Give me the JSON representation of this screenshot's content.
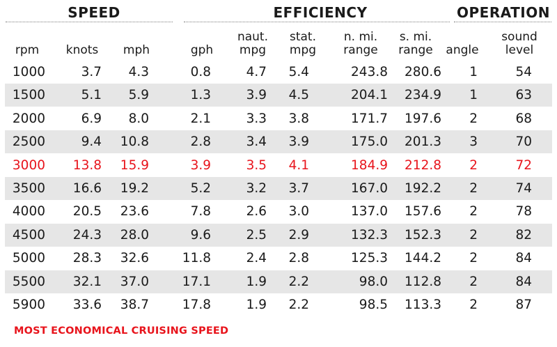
{
  "groups": {
    "speed": "SPEED",
    "efficiency": "EFFICIENCY",
    "operation": "OPERATION"
  },
  "columns": [
    {
      "key": "rpm",
      "lines": [
        "rpm"
      ]
    },
    {
      "key": "knots",
      "lines": [
        "knots"
      ]
    },
    {
      "key": "mph",
      "lines": [
        "mph"
      ]
    },
    {
      "key": "gph",
      "lines": [
        "gph"
      ]
    },
    {
      "key": "naut_mpg",
      "lines": [
        "naut.",
        "mpg"
      ]
    },
    {
      "key": "stat_mpg",
      "lines": [
        "stat.",
        "mpg"
      ]
    },
    {
      "key": "nmi_range",
      "lines": [
        "n. mi.",
        "range"
      ]
    },
    {
      "key": "smi_range",
      "lines": [
        "s. mi.",
        "range"
      ]
    },
    {
      "key": "angle",
      "lines": [
        "angle"
      ]
    },
    {
      "key": "sound_level",
      "lines": [
        "sound",
        "level"
      ]
    }
  ],
  "rows": [
    {
      "values": [
        "1000",
        "3.7",
        "4.3",
        "0.8",
        "4.7",
        "5.4",
        "243.8",
        "280.6",
        "1",
        "54"
      ],
      "highlight": false
    },
    {
      "values": [
        "1500",
        "5.1",
        "5.9",
        "1.3",
        "3.9",
        "4.5",
        "204.1",
        "234.9",
        "1",
        "63"
      ],
      "highlight": false
    },
    {
      "values": [
        "2000",
        "6.9",
        "8.0",
        "2.1",
        "3.3",
        "3.8",
        "171.7",
        "197.6",
        "2",
        "68"
      ],
      "highlight": false
    },
    {
      "values": [
        "2500",
        "9.4",
        "10.8",
        "2.8",
        "3.4",
        "3.9",
        "175.0",
        "201.3",
        "3",
        "70"
      ],
      "highlight": false
    },
    {
      "values": [
        "3000",
        "13.8",
        "15.9",
        "3.9",
        "3.5",
        "4.1",
        "184.9",
        "212.8",
        "2",
        "72"
      ],
      "highlight": true
    },
    {
      "values": [
        "3500",
        "16.6",
        "19.2",
        "5.2",
        "3.2",
        "3.7",
        "167.0",
        "192.2",
        "2",
        "74"
      ],
      "highlight": false
    },
    {
      "values": [
        "4000",
        "20.5",
        "23.6",
        "7.8",
        "2.6",
        "3.0",
        "137.0",
        "157.6",
        "2",
        "78"
      ],
      "highlight": false
    },
    {
      "values": [
        "4500",
        "24.3",
        "28.0",
        "9.6",
        "2.5",
        "2.9",
        "132.3",
        "152.3",
        "2",
        "82"
      ],
      "highlight": false
    },
    {
      "values": [
        "5000",
        "28.3",
        "32.6",
        "11.8",
        "2.4",
        "2.8",
        "125.3",
        "144.2",
        "2",
        "84"
      ],
      "highlight": false
    },
    {
      "values": [
        "5500",
        "32.1",
        "37.0",
        "17.1",
        "1.9",
        "2.2",
        "98.0",
        "112.8",
        "2",
        "84"
      ],
      "highlight": false
    },
    {
      "values": [
        "5900",
        "33.6",
        "38.7",
        "17.8",
        "1.9",
        "2.2",
        "98.5",
        "113.3",
        "2",
        "87"
      ],
      "highlight": false
    }
  ],
  "footnote": "MOST ECONOMICAL CRUISING SPEED",
  "colors": {
    "highlight": "#e8141c",
    "row_shade": "#e6e6e6",
    "text": "#1a1a1a"
  }
}
